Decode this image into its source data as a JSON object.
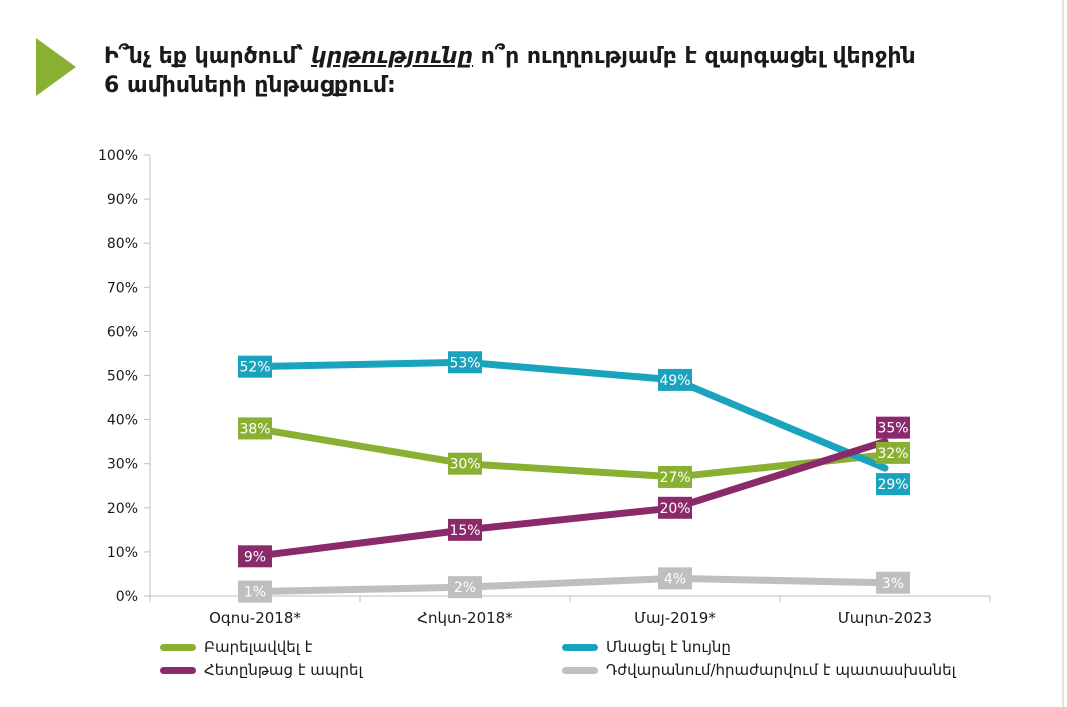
{
  "title": {
    "part1": "Ի՞նչ եք կարծում՝ ",
    "emphasis": "կրթությունը",
    "part2": " ո՞ր ուղղությամբ է զարգացել վերջին",
    "line2": "6 ամիսների ընթացքում:"
  },
  "colors": {
    "accent_arrow": "#8ab033",
    "grid": "#d9d9d9",
    "axis": "#bfbfbf",
    "text": "#1a1a1a"
  },
  "chart_data": {
    "type": "line",
    "categories": [
      "Օգոս-2018*",
      "Հոկտ-2018*",
      "Մայ-2019*",
      "Մարտ-2023"
    ],
    "ylim": [
      0,
      100
    ],
    "yticks": [
      0,
      10,
      20,
      30,
      40,
      50,
      60,
      70,
      80,
      90,
      100
    ],
    "ytick_suffix": "%",
    "grid": false,
    "legend_position": "bottom",
    "series": [
      {
        "name": "Բարելավվել է",
        "color": "#8ab033",
        "values": [
          38,
          30,
          27,
          32
        ],
        "labels": [
          "38%",
          "30%",
          "27%",
          "32%"
        ]
      },
      {
        "name": "Մնացել է նույնը",
        "color": "#1aa3bd",
        "values": [
          52,
          53,
          49,
          29
        ],
        "labels": [
          "52%",
          "53%",
          "49%",
          "29%"
        ]
      },
      {
        "name": "Հետընթաց է ապրել",
        "color": "#8b2a6b",
        "values": [
          9,
          15,
          20,
          35
        ],
        "labels": [
          "9%",
          "15%",
          "20%",
          "35%"
        ]
      },
      {
        "name": "Դժվարանում/հրաժարվում է պատասխանել",
        "color": "#bfbfbf",
        "values": [
          1,
          2,
          4,
          3
        ],
        "labels": [
          "1%",
          "2%",
          "4%",
          "3%"
        ]
      }
    ]
  }
}
